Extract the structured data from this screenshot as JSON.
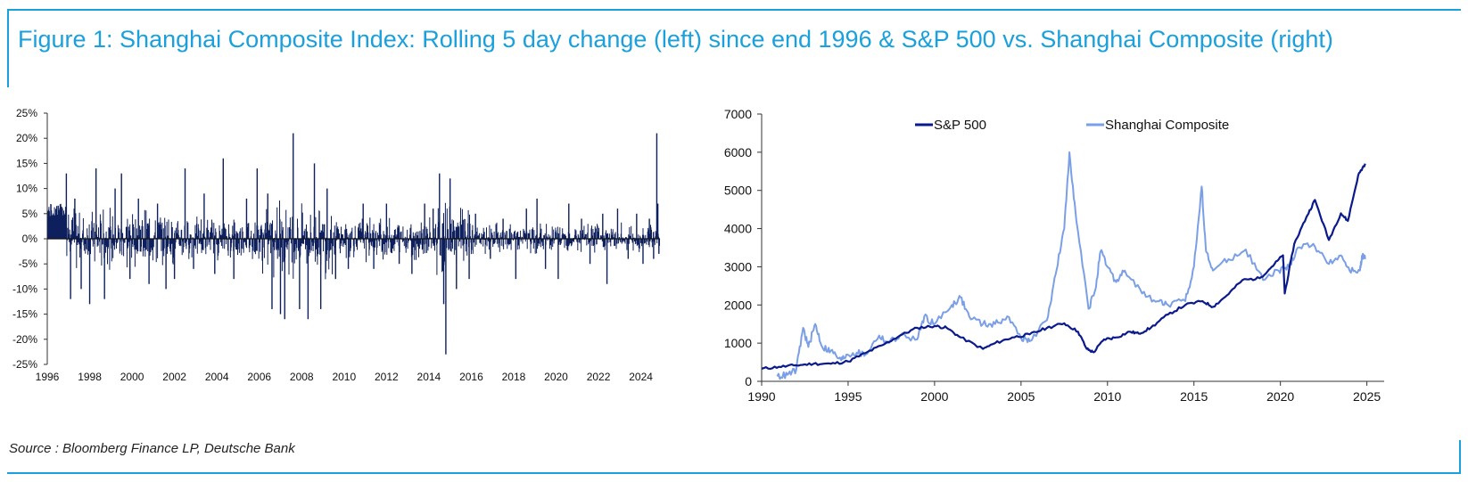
{
  "title": "Figure 1: Shanghai Composite Index: Rolling 5 day change (left) since end 1996 & S&P 500 vs. Shanghai Composite (right)",
  "source": "Source : Bloomberg Finance LP, Deutsche Bank",
  "colors": {
    "accent": "#1aa0dc",
    "navy": "#0d1f5c",
    "sp500": "#0a1a8c",
    "shanghai": "#7b9fe6"
  },
  "chart_data": [
    {
      "type": "bar",
      "title": "",
      "xlabel": "",
      "ylabel": "",
      "ylim": [
        -0.25,
        0.25
      ],
      "xlim": [
        1996,
        2024.9
      ],
      "y_ticks": [
        "25%",
        "20%",
        "15%",
        "10%",
        "5%",
        "0%",
        "-5%",
        "-10%",
        "-15%",
        "-20%",
        "-25%"
      ],
      "x_ticks": [
        "1996",
        "1998",
        "2000",
        "2002",
        "2004",
        "2006",
        "2008",
        "2010",
        "2012",
        "2014",
        "2016",
        "2018",
        "2020",
        "2022",
        "2024"
      ],
      "series": [
        {
          "values_description_points": [
            [
              1996.9,
              0.13
            ],
            [
              1997.1,
              -0.12
            ],
            [
              1997.3,
              0.08
            ],
            [
              1997.6,
              -0.1
            ],
            [
              1998.0,
              -0.13
            ],
            [
              1998.3,
              0.14
            ],
            [
              1998.7,
              -0.12
            ],
            [
              1999.2,
              0.1
            ],
            [
              1999.5,
              0.13
            ],
            [
              1999.9,
              -0.08
            ],
            [
              2000.3,
              0.08
            ],
            [
              2000.8,
              -0.09
            ],
            [
              2001.2,
              0.07
            ],
            [
              2001.6,
              -0.1
            ],
            [
              2002.0,
              -0.08
            ],
            [
              2002.5,
              0.14
            ],
            [
              2002.9,
              -0.06
            ],
            [
              2003.4,
              0.09
            ],
            [
              2003.9,
              -0.07
            ],
            [
              2004.3,
              0.16
            ],
            [
              2004.8,
              -0.08
            ],
            [
              2005.4,
              0.08
            ],
            [
              2005.9,
              0.14
            ],
            [
              2006.4,
              0.09
            ],
            [
              2006.6,
              -0.14
            ],
            [
              2007.0,
              -0.15
            ],
            [
              2007.2,
              -0.16
            ],
            [
              2007.6,
              0.21
            ],
            [
              2007.9,
              -0.14
            ],
            [
              2008.3,
              -0.16
            ],
            [
              2008.6,
              0.15
            ],
            [
              2008.9,
              -0.14
            ],
            [
              2009.2,
              0.1
            ],
            [
              2009.6,
              -0.08
            ],
            [
              2010.2,
              -0.06
            ],
            [
              2010.9,
              0.07
            ],
            [
              2011.4,
              -0.06
            ],
            [
              2012.0,
              0.07
            ],
            [
              2012.6,
              -0.05
            ],
            [
              2013.2,
              -0.07
            ],
            [
              2013.8,
              0.07
            ],
            [
              2014.2,
              0.06
            ],
            [
              2014.5,
              0.13
            ],
            [
              2014.7,
              -0.13
            ],
            [
              2014.8,
              -0.23
            ],
            [
              2015.0,
              0.12
            ],
            [
              2015.3,
              -0.1
            ],
            [
              2015.9,
              -0.08
            ],
            [
              2016.2,
              0.05
            ],
            [
              2016.9,
              -0.04
            ],
            [
              2017.5,
              0.04
            ],
            [
              2018.1,
              -0.08
            ],
            [
              2018.6,
              0.06
            ],
            [
              2019.1,
              0.08
            ],
            [
              2019.5,
              -0.06
            ],
            [
              2020.1,
              -0.08
            ],
            [
              2020.6,
              0.07
            ],
            [
              2021.2,
              0.04
            ],
            [
              2021.6,
              -0.05
            ],
            [
              2022.2,
              0.05
            ],
            [
              2022.4,
              -0.09
            ],
            [
              2022.9,
              0.06
            ],
            [
              2023.4,
              -0.04
            ],
            [
              2023.8,
              0.05
            ],
            [
              2024.1,
              -0.05
            ],
            [
              2024.4,
              0.04
            ],
            [
              2024.6,
              -0.04
            ],
            [
              2024.75,
              0.21
            ],
            [
              2024.8,
              0.07
            ],
            [
              2024.85,
              -0.03
            ]
          ]
        }
      ]
    },
    {
      "type": "line",
      "title": "",
      "xlabel": "",
      "ylabel": "",
      "xlim": [
        1990,
        2026
      ],
      "ylim": [
        0,
        7000
      ],
      "x_ticks": [
        "1990",
        "1995",
        "2000",
        "2005",
        "2010",
        "2015",
        "2020",
        "2025"
      ],
      "y_ticks": [
        "7000",
        "6000",
        "5000",
        "4000",
        "3000",
        "2000",
        "1000",
        "0"
      ],
      "legend_position": "top",
      "series": [
        {
          "name": "S&P 500",
          "x": [
            1990,
            1991,
            1992,
            1993,
            1994,
            1995,
            1996,
            1997,
            1998,
            1999,
            2000,
            2000.7,
            2001.5,
            2002.8,
            2003.5,
            2004.5,
            2005.5,
            2006.5,
            2007.5,
            2008.3,
            2008.8,
            2009.2,
            2009.8,
            2010.5,
            2011.3,
            2011.8,
            2012.5,
            2013.5,
            2014.5,
            2015.5,
            2016.1,
            2016.9,
            2017.8,
            2018.8,
            2019.5,
            2020.15,
            2020.25,
            2020.8,
            2021.5,
            2022.0,
            2022.8,
            2023.5,
            2023.9,
            2024.5,
            2024.9
          ],
          "y": [
            330,
            380,
            420,
            460,
            460,
            520,
            740,
            950,
            1200,
            1400,
            1450,
            1400,
            1150,
            850,
            1000,
            1150,
            1230,
            1400,
            1520,
            1300,
            850,
            760,
            1100,
            1150,
            1300,
            1250,
            1400,
            1750,
            2000,
            2100,
            1950,
            2250,
            2650,
            2700,
            3000,
            3300,
            2300,
            3600,
            4300,
            4750,
            3700,
            4400,
            4200,
            5400,
            5700
          ]
        },
        {
          "name": "Shanghai  Composite",
          "x": [
            1990.9,
            1991.5,
            1992.0,
            1992.4,
            1992.7,
            1993.1,
            1993.5,
            1994.0,
            1994.6,
            1994.9,
            1995.5,
            1996.0,
            1996.8,
            1997.3,
            1998.0,
            1999.0,
            1999.4,
            2000.0,
            2001.0,
            2001.5,
            2002.0,
            2002.8,
            2003.5,
            2004.2,
            2005.0,
            2005.5,
            2006.5,
            2007.0,
            2007.5,
            2007.8,
            2008.2,
            2008.9,
            2009.3,
            2009.6,
            2010.0,
            2010.5,
            2011.0,
            2012.0,
            2012.9,
            2013.5,
            2014.5,
            2015.0,
            2015.45,
            2015.7,
            2016.1,
            2017.0,
            2018.0,
            2019.0,
            2019.9,
            2020.5,
            2021.0,
            2021.9,
            2022.7,
            2023.5,
            2024.0,
            2024.6,
            2024.75,
            2024.9
          ],
          "y": [
            130,
            170,
            300,
            1400,
            900,
            1500,
            900,
            800,
            550,
            700,
            750,
            700,
            1200,
            1000,
            1200,
            1100,
            1700,
            1500,
            2000,
            2200,
            1700,
            1500,
            1500,
            1700,
            1150,
            1050,
            1600,
            2800,
            4000,
            6000,
            4200,
            1900,
            2400,
            3400,
            3000,
            2600,
            2900,
            2300,
            2100,
            2000,
            2100,
            3000,
            5100,
            3400,
            2900,
            3200,
            3450,
            2650,
            2900,
            3000,
            3500,
            3600,
            3100,
            3300,
            2900,
            2900,
            3300,
            3200
          ]
        }
      ]
    }
  ]
}
